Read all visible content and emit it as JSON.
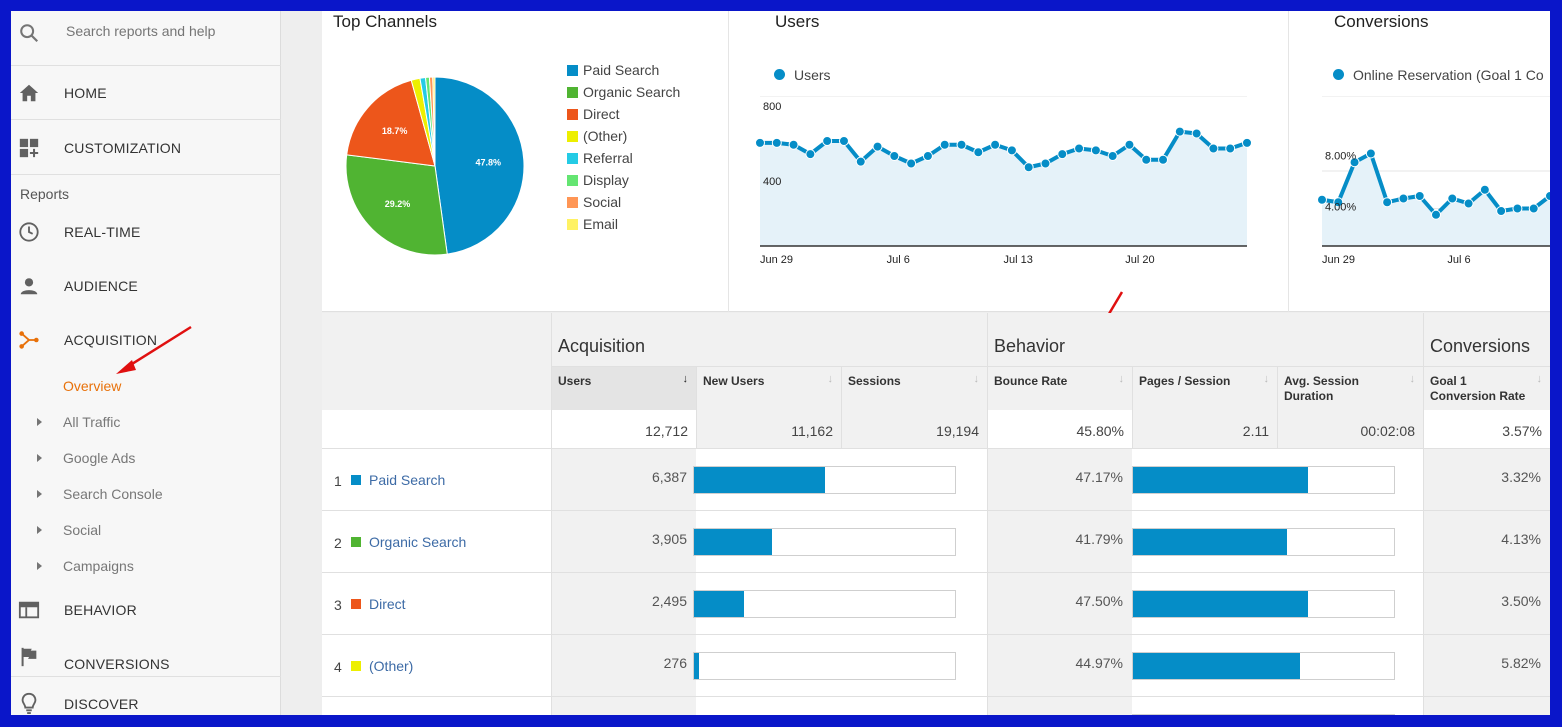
{
  "sidebar": {
    "search_placeholder": "Search reports and help",
    "home": "HOME",
    "customization": "CUSTOMIZATION",
    "reports_label": "Reports",
    "realtime": "REAL-TIME",
    "audience": "AUDIENCE",
    "acquisition": "ACQUISITION",
    "sub_items": [
      "Overview",
      "All Traffic",
      "Google Ads",
      "Search Console",
      "Social",
      "Campaigns"
    ],
    "behavior": "BEHAVIOR",
    "conversions": "CONVERSIONS",
    "discover": "DISCOVER",
    "accent_color": "#e8710a"
  },
  "top_channels": {
    "title": "Top Channels",
    "legend": [
      "Paid Search",
      "Organic Search",
      "Direct",
      "(Other)",
      "Referral",
      "Display",
      "Social",
      "Email"
    ],
    "colors": [
      "#058dc7",
      "#50b432",
      "#ed561b",
      "#edef00",
      "#24cbe5",
      "#64e572",
      "#ff9655",
      "#fff263"
    ],
    "slice_labels": [
      "47.8%",
      "29.2%",
      "18.7%"
    ]
  },
  "users_card": {
    "title": "Users",
    "legend": "Users",
    "y_ticks": [
      "800",
      "400"
    ],
    "x_ticks": [
      "Jun 29",
      "Jul 6",
      "Jul 13",
      "Jul 20"
    ]
  },
  "conversions_card": {
    "title": "Conversions",
    "legend": "Online Reservation (Goal 1 Co",
    "y_ticks": [
      "8.00%",
      "4.00%"
    ],
    "x_ticks": [
      "Jun 29",
      "Jul 6"
    ]
  },
  "chart_data": [
    {
      "type": "pie",
      "title": "Top Channels",
      "categories": [
        "Paid Search",
        "Organic Search",
        "Direct",
        "(Other)",
        "Referral",
        "Display",
        "Social",
        "Email"
      ],
      "values": [
        47.8,
        29.2,
        18.7,
        1.6,
        1.0,
        0.7,
        0.6,
        0.4
      ]
    },
    {
      "type": "area",
      "title": "Users",
      "x_ticks": [
        "Jun 29",
        "Jul 6",
        "Jul 13",
        "Jul 20"
      ],
      "ylim": [
        0,
        800
      ],
      "series": [
        {
          "name": "Users",
          "values": [
            550,
            550,
            540,
            490,
            560,
            560,
            450,
            530,
            480,
            440,
            480,
            540,
            540,
            500,
            540,
            510,
            420,
            440,
            490,
            520,
            510,
            480,
            540,
            460,
            460,
            610,
            600,
            520,
            520,
            550
          ]
        }
      ]
    },
    {
      "type": "area",
      "title": "Conversions",
      "x_ticks": [
        "Jun 29",
        "Jul 6"
      ],
      "ylim": [
        0,
        12
      ],
      "series": [
        {
          "name": "Online Reservation (Goal 1 Co",
          "values": [
            3.7,
            3.5,
            6.7,
            7.4,
            3.5,
            3.8,
            4.0,
            2.5,
            3.8,
            3.4,
            4.5,
            2.8,
            3.0,
            3.0,
            4.0
          ]
        }
      ]
    }
  ],
  "table": {
    "groups": [
      "Acquisition",
      "Behavior",
      "Conversions"
    ],
    "columns": [
      "Users",
      "New Users",
      "Sessions",
      "Bounce Rate",
      "Pages / Session",
      "Avg. Session Duration",
      "Goal 1 Conversion Rate"
    ],
    "sort_arrow": "↓",
    "dim_arrow": "↓",
    "totals": [
      "12,712",
      "11,162",
      "19,194",
      "45.80%",
      "2.11",
      "00:02:08",
      "3.57%"
    ],
    "rows": [
      {
        "num": "1",
        "name": "Paid Search",
        "color": "#058dc7",
        "users": "6,387",
        "new_users_share": 0.5,
        "bounce": "47.17%",
        "pages_share": 0.67,
        "conv": "3.32%"
      },
      {
        "num": "2",
        "name": "Organic Search",
        "color": "#50b432",
        "users": "3,905",
        "new_users_share": 0.3,
        "bounce": "41.79%",
        "pages_share": 0.59,
        "conv": "4.13%"
      },
      {
        "num": "3",
        "name": "Direct",
        "color": "#ed561b",
        "users": "2,495",
        "new_users_share": 0.19,
        "bounce": "47.50%",
        "pages_share": 0.67,
        "conv": "3.50%"
      },
      {
        "num": "4",
        "name": "(Other)",
        "color": "#edef00",
        "users": "276",
        "new_users_share": 0.02,
        "bounce": "44.97%",
        "pages_share": 0.64,
        "conv": "5.82%"
      }
    ]
  }
}
